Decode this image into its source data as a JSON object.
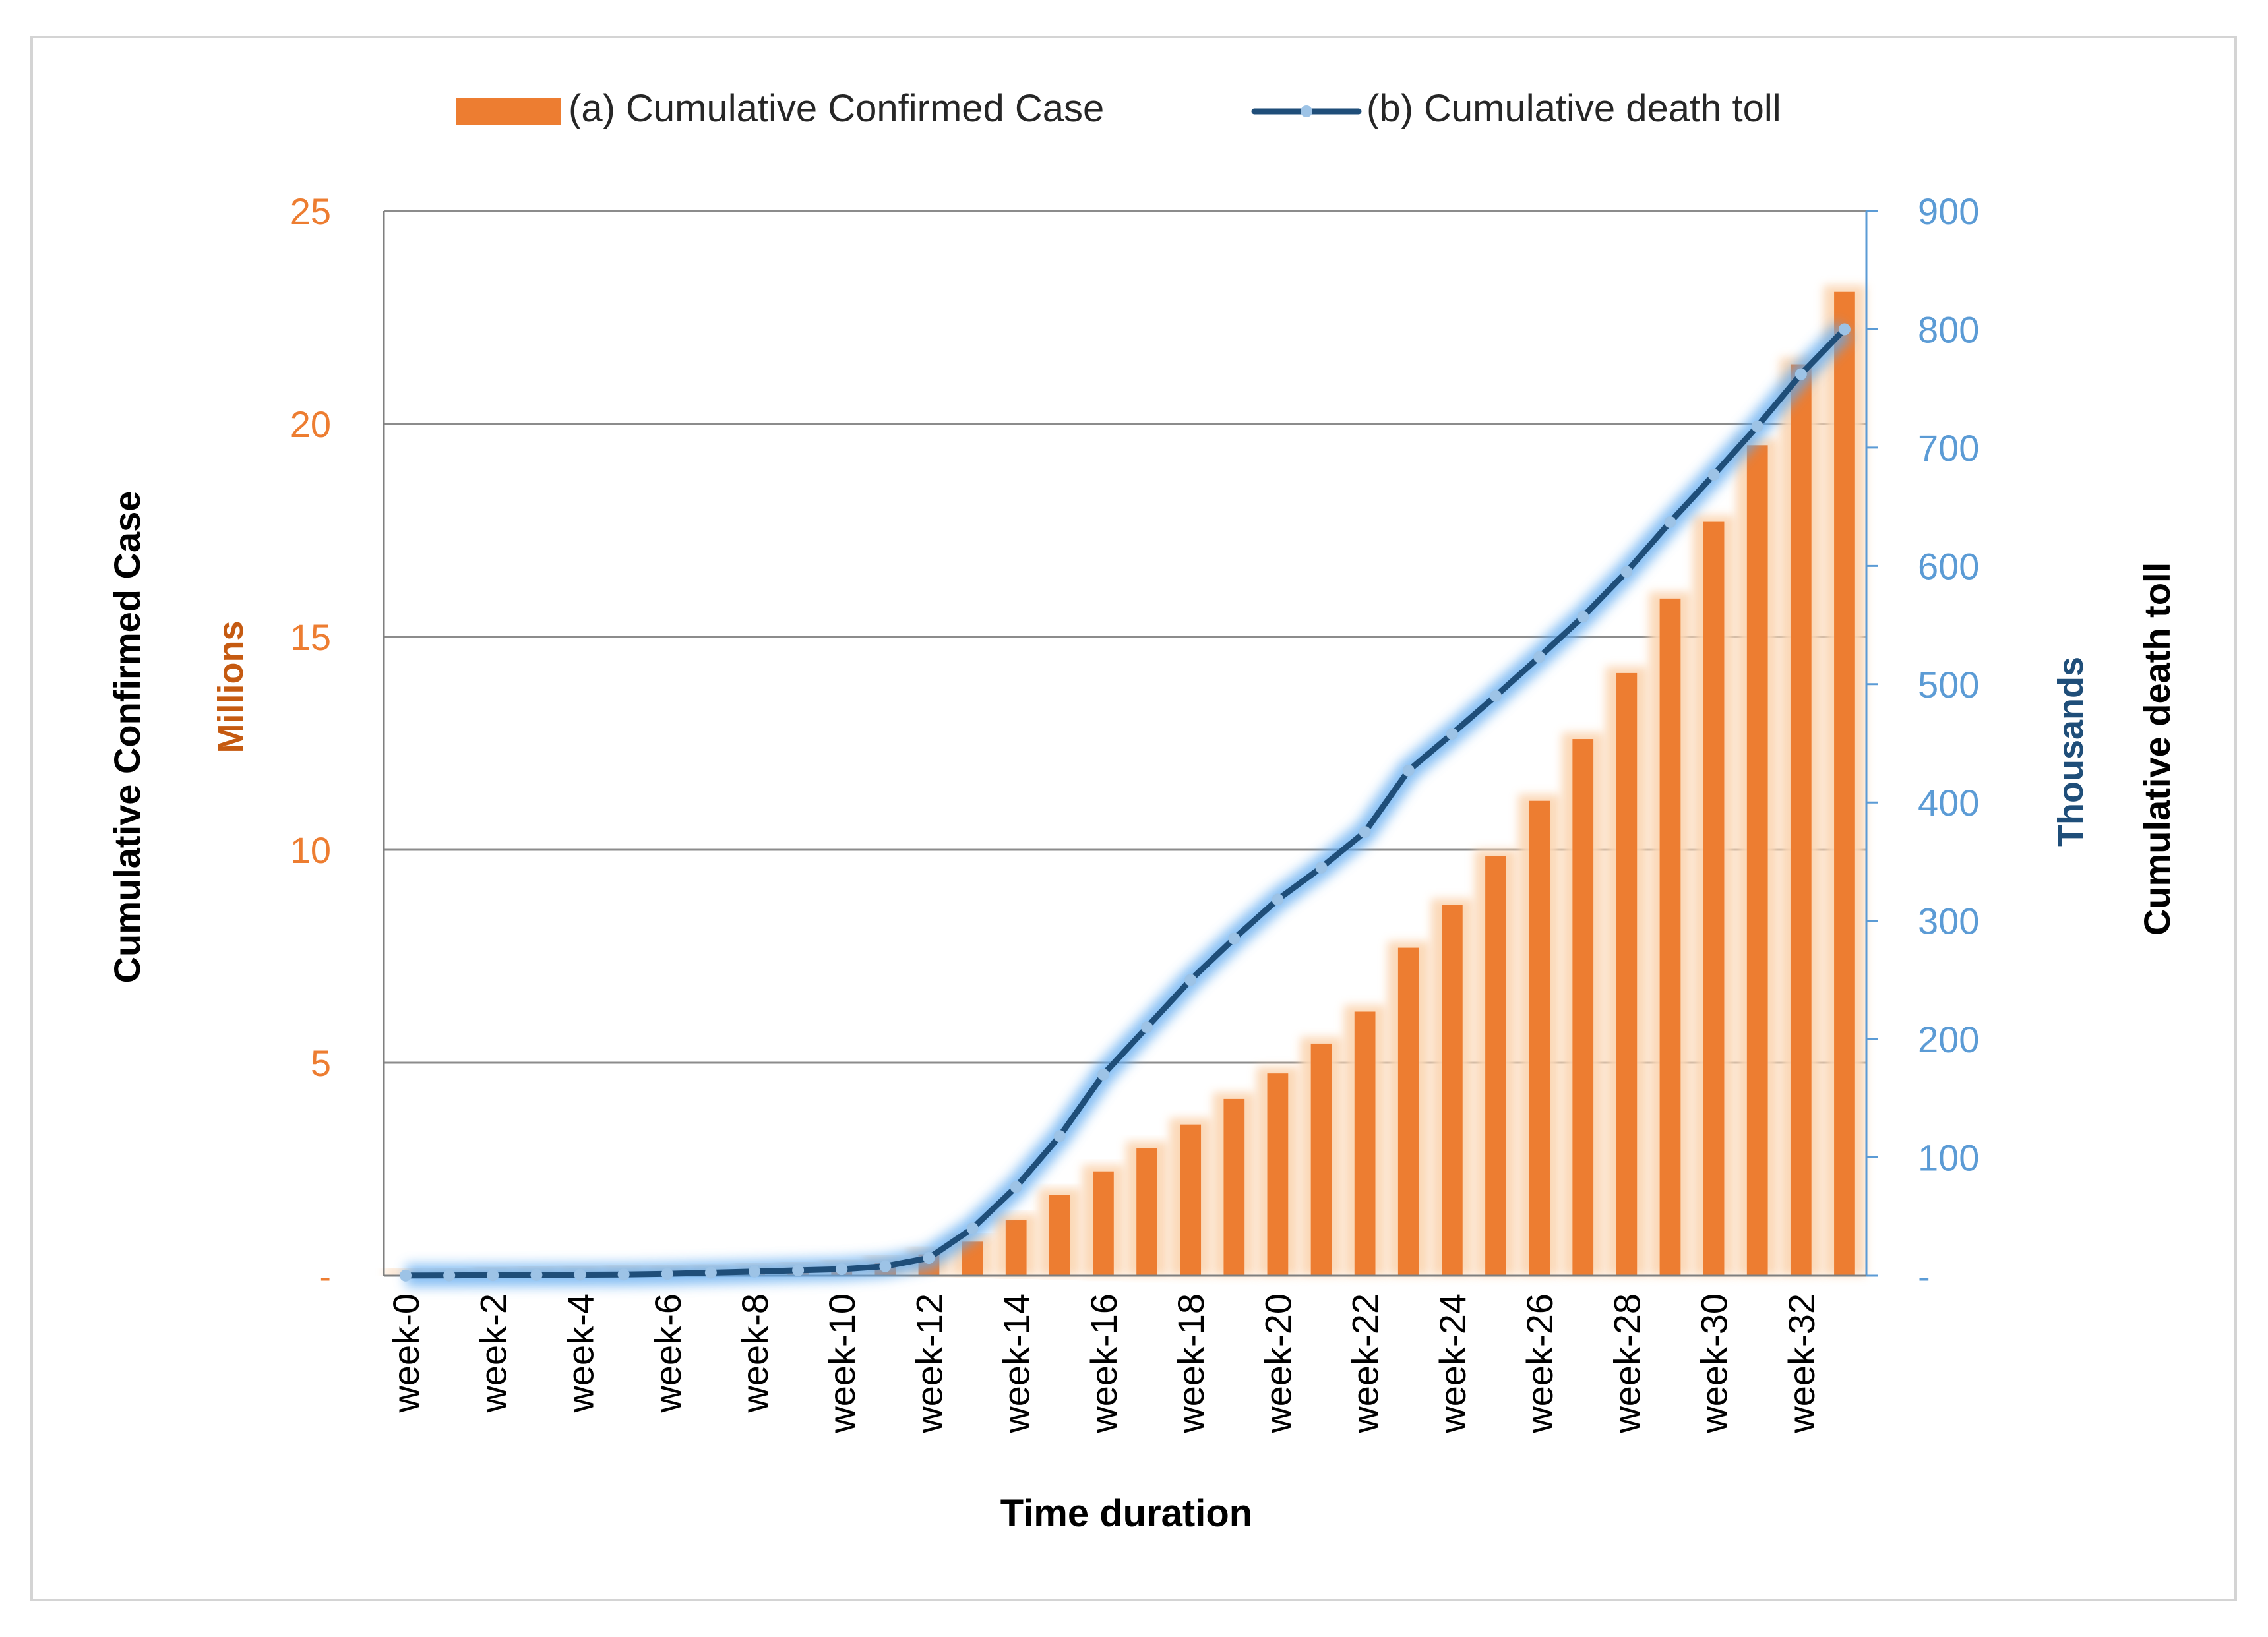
{
  "chart_data": {
    "type": "bar+line",
    "title": "",
    "xlabel": "Time duration",
    "legend_position": "top",
    "legend": [
      {
        "label": "(a) Cumulative Confirmed Case",
        "kind": "bar"
      },
      {
        "label": "(b) Cumulative death toll",
        "kind": "line"
      }
    ],
    "left_axis": {
      "title": "Cumulative Confirmed Case",
      "units": "Millions",
      "ylim": [
        0,
        25
      ],
      "ticks": [
        "-",
        "5",
        "10",
        "15",
        "20",
        "25"
      ],
      "tick_values": [
        0,
        5,
        10,
        15,
        20,
        25
      ]
    },
    "right_axis": {
      "title": "Cumulative death toll",
      "units": "Thousands",
      "ylim": [
        0,
        900
      ],
      "ticks": [
        "-",
        "100",
        "200",
        "300",
        "400",
        "500",
        "600",
        "700",
        "800",
        "900"
      ],
      "tick_values": [
        0,
        100,
        200,
        300,
        400,
        500,
        600,
        700,
        800,
        900
      ]
    },
    "categories": [
      "week-0",
      "week-1",
      "week-2",
      "week-3",
      "week-4",
      "week-5",
      "week-6",
      "week-7",
      "week-8",
      "week-9",
      "week-10",
      "week-11",
      "week-12",
      "week-13",
      "week-14",
      "week-15",
      "week-16",
      "week-17",
      "week-18",
      "week-19",
      "week-20",
      "week-21",
      "week-22",
      "week-23",
      "week-24",
      "week-25",
      "week-26",
      "week-27",
      "week-28",
      "week-29",
      "week-30",
      "week-31",
      "week-32",
      "week-33"
    ],
    "x_tick_labels": [
      "week-0",
      "week-2",
      "week-4",
      "week-6",
      "week-8",
      "week-10",
      "week-12",
      "week-14",
      "week-16",
      "week-18",
      "week-20",
      "week-22",
      "week-24",
      "week-26",
      "week-28",
      "week-30",
      "week-32"
    ],
    "series": [
      {
        "name": "(a) Cumulative Confirmed Case",
        "type": "bar",
        "axis": "left",
        "color": "#ED7D31",
        "values": [
          0.01,
          0.02,
          0.04,
          0.06,
          0.07,
          0.08,
          0.09,
          0.1,
          0.12,
          0.15,
          0.2,
          0.3,
          0.5,
          0.8,
          1.3,
          1.9,
          2.45,
          3.0,
          3.55,
          4.15,
          4.75,
          5.45,
          6.2,
          7.7,
          8.7,
          9.85,
          11.15,
          12.6,
          14.15,
          15.9,
          17.7,
          19.5,
          21.4,
          23.1
        ]
      },
      {
        "name": "(b) Cumulative death toll",
        "type": "line",
        "axis": "right",
        "color": "#1F4E79",
        "marker_color": "#9DC3E6",
        "values": [
          0.1,
          0.2,
          0.4,
          0.6,
          0.8,
          1.0,
          1.5,
          2.5,
          3.5,
          4.5,
          5.5,
          8,
          15,
          40,
          75,
          118,
          170,
          210,
          250,
          285,
          318,
          345,
          375,
          427,
          458,
          490,
          523,
          557,
          595,
          637,
          677,
          718,
          762,
          800
        ]
      }
    ],
    "colors": {
      "bar": "#ED7D31",
      "bar_glow": "#FBD7B5",
      "line": "#1F4E79",
      "marker": "#9DC3E6",
      "line_glow": "#5DA9F0",
      "left_axis_text": "#ED7D31",
      "left_units_text": "#C55A11",
      "right_axis_text": "#5B9BD5",
      "right_units_text": "#1F4E79",
      "grid": "#8c8c8c"
    }
  }
}
